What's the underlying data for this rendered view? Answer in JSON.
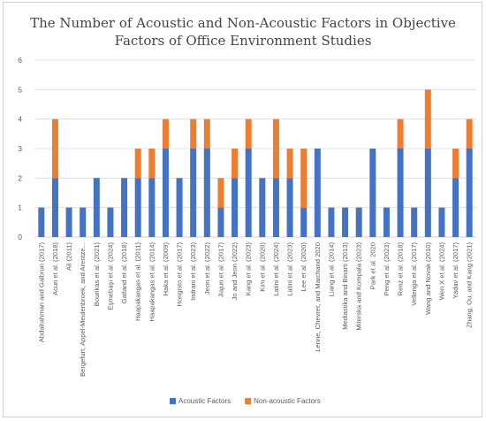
{
  "chart_data": {
    "type": "bar",
    "stacked": true,
    "title_lines": [
      "The Number of Acoustic and Non-Acoustic Factors in Objective",
      "Factors of Office Environment Studies"
    ],
    "xlabel": "",
    "ylabel": "",
    "ylim": [
      0,
      6
    ],
    "yticks": [
      0,
      1,
      2,
      3,
      4,
      5,
      6
    ],
    "grid": true,
    "legend_position": "bottom",
    "categories": [
      "Abdalrahman and Galbrun (2017)",
      "Acun et al. (2018)",
      "Ali (2011)",
      "Bergefurt, Appel-Meulenbroek, and Arentze...",
      "Bourikas et al. (2021)",
      "Eşmebaşı et al. (2024)",
      "Gatland et al. (2018)",
      "Haapakangas et al. (2011)",
      "Haapakangas et al. (2014)",
      "Haka et al. (2009)",
      "Hongisto et al. (2017)",
      "Indrani et al. (2023)",
      "Jeon et al. (2022)",
      "Jiajun et al. (2017)",
      "Jo and Jeon (2022)",
      "Kang et al. (2023)",
      "Kim et al. (2020)",
      "Latini et al. (2024)",
      "Latini et al. (2023)",
      "Lee et al. (2020)",
      "Lenne, Chevret, and Marchand 2020",
      "Liang et al. (2014)",
      "Mediastika and Binarti (2013)",
      "Miterska and Kompała (2023)",
      "Park et al. 2020",
      "Peng et al. (2023)",
      "Renz et al. (2018)",
      "Vellenga et al. (2017)",
      "Wang and Novak (2010)",
      "Wen X et al. (2024)",
      "Yadav et al. (2017)",
      "Zhang, Ou, and Kang (2021)"
    ],
    "series": [
      {
        "name": "Acoustic Factors",
        "color": "#4472c4",
        "values": [
          1,
          2,
          1,
          1,
          2,
          1,
          2,
          2,
          2,
          3,
          2,
          3,
          3,
          1,
          2,
          3,
          2,
          2,
          2,
          1,
          3,
          1,
          1,
          1,
          3,
          1,
          3,
          1,
          3,
          1,
          2,
          3
        ]
      },
      {
        "name": "Non-acoustic Factors",
        "color": "#ed7d31",
        "values": [
          0,
          2,
          0,
          0,
          0,
          0,
          0,
          1,
          1,
          1,
          0,
          1,
          1,
          1,
          1,
          1,
          0,
          2,
          1,
          2,
          0,
          0,
          0,
          0,
          0,
          0,
          1,
          0,
          2,
          0,
          1,
          1
        ]
      }
    ]
  }
}
